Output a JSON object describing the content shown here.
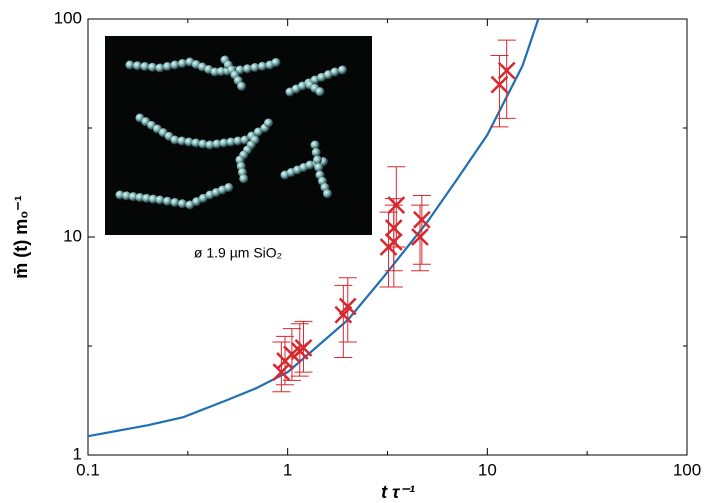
{
  "chart_data": {
    "type": "scatter",
    "xlabel": "t τ⁻¹",
    "ylabel": "m̄ (t) m₀⁻¹",
    "inset_caption": "ø 1.9 µm SiO₂",
    "log_x": true,
    "log_y": true,
    "xlim": [
      0.1,
      100
    ],
    "ylim": [
      1,
      100
    ],
    "xticks": [
      0.1,
      1,
      10,
      100
    ],
    "yticks": [
      1,
      10,
      100
    ],
    "xticks_minor": [
      0.3162,
      3.162,
      31.62
    ],
    "yticks_minor": [
      3.162,
      31.62
    ],
    "series": [
      {
        "color": "#d7282f",
        "x": [
          0.93,
          0.97,
          1.05,
          1.15,
          1.2,
          1.9,
          2.0,
          3.2,
          3.4,
          3.5,
          3.4,
          4.6,
          4.7,
          11.5,
          12.5
        ],
        "y": [
          2.4,
          2.7,
          2.9,
          3.0,
          3.1,
          4.4,
          4.8,
          9.0,
          11,
          14,
          9.5,
          10,
          12,
          50,
          58
        ],
        "y_low": [
          1.95,
          2.1,
          2.2,
          2.3,
          2.4,
          2.8,
          3.3,
          5.9,
          7.0,
          9,
          5.9,
          7,
          7.5,
          32,
          35
        ],
        "y_high": [
          3.3,
          3.5,
          3.8,
          4.0,
          4.1,
          6.0,
          6.5,
          13,
          15,
          21,
          14,
          14,
          15.5,
          68,
          80
        ]
      }
    ],
    "fit": {
      "color": "#1f6fb4",
      "x": [
        0.1,
        0.2,
        0.3,
        0.5,
        0.7,
        1,
        2,
        3,
        5,
        7,
        10,
        15,
        18
      ],
      "y": [
        1.22,
        1.37,
        1.49,
        1.79,
        2.03,
        2.4,
        4.16,
        6.5,
        11.7,
        18.2,
        29.4,
        61,
        100
      ]
    }
  }
}
